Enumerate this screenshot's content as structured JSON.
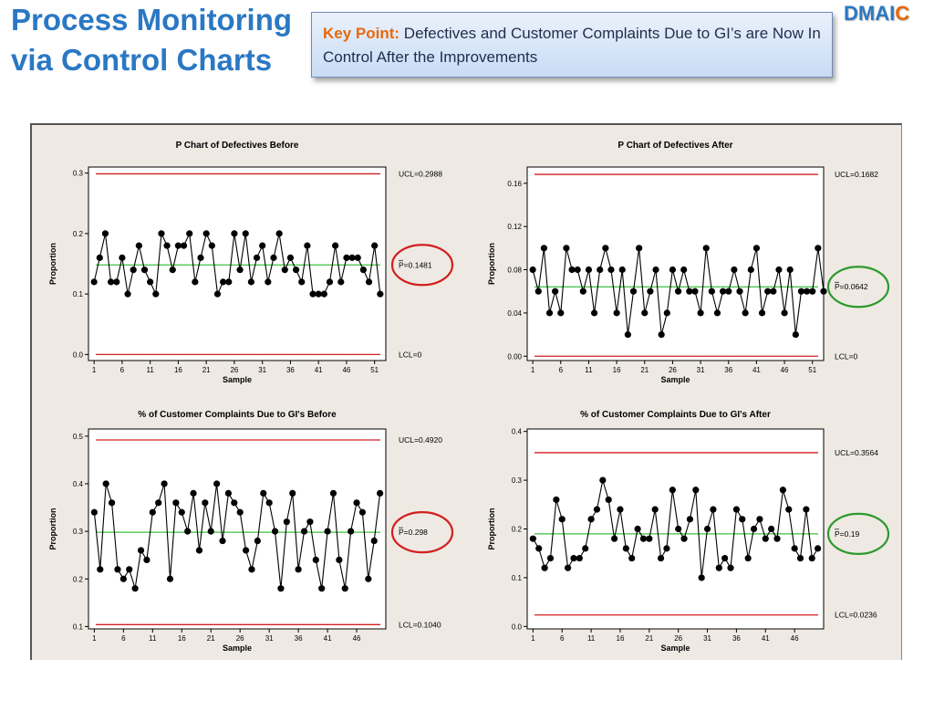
{
  "slide": {
    "title_line1": "Process Monitoring",
    "title_line2": "via Control Charts",
    "keypoint_label": "Key Point:",
    "keypoint_text": "Defectives and Customer Complaints Due to GI’s are Now In Control After the Improvements",
    "logo_prefix": "DMAI",
    "logo_highlight": "C"
  },
  "colors": {
    "title": "#2a78c4",
    "accent": "#e8680a",
    "limit_line": "#d21f1f",
    "center_line": "#3cc03c",
    "circle_before": "#d21f1f",
    "circle_after": "#2e9a2e",
    "panel_bg": "#eeeae3"
  },
  "chart_data": [
    {
      "type": "line",
      "title": "P Chart of Defectives Before",
      "xlabel": "Sample",
      "ylabel": "Proportion",
      "ylim": [
        -0.01,
        0.31
      ],
      "yticks": [
        0.0,
        0.1,
        0.2,
        0.3
      ],
      "ytick_labels": [
        "0.0",
        "0.1",
        "0.2",
        "0.3"
      ],
      "xticks": [
        1,
        6,
        11,
        16,
        21,
        26,
        31,
        36,
        41,
        46,
        51
      ],
      "xlim": [
        0,
        53
      ],
      "ucl": 0.2988,
      "center": 0.1481,
      "lcl": 0.0,
      "ucl_label": "UCL=0.2988",
      "center_label": "P=0.1481",
      "lcl_label": "LCL=0",
      "highlight": "red",
      "values": [
        0.12,
        0.16,
        0.2,
        0.12,
        0.12,
        0.16,
        0.1,
        0.14,
        0.18,
        0.14,
        0.12,
        0.1,
        0.2,
        0.18,
        0.14,
        0.18,
        0.18,
        0.2,
        0.12,
        0.16,
        0.2,
        0.18,
        0.1,
        0.12,
        0.12,
        0.2,
        0.14,
        0.2,
        0.12,
        0.16,
        0.18,
        0.12,
        0.16,
        0.2,
        0.14,
        0.16,
        0.14,
        0.12,
        0.18,
        0.1,
        0.1,
        0.1,
        0.12,
        0.18,
        0.12,
        0.16,
        0.16,
        0.16,
        0.14,
        0.12,
        0.18,
        0.1
      ]
    },
    {
      "type": "line",
      "title": "P Chart of Defectives After",
      "xlabel": "Sample",
      "ylabel": "Proportion",
      "ylim": [
        -0.004,
        0.175
      ],
      "yticks": [
        0.0,
        0.04,
        0.08,
        0.12,
        0.16
      ],
      "ytick_labels": [
        "0.00",
        "0.04",
        "0.08",
        "0.12",
        "0.16"
      ],
      "xticks": [
        1,
        6,
        11,
        16,
        21,
        26,
        31,
        36,
        41,
        46,
        51
      ],
      "xlim": [
        0,
        53
      ],
      "ucl": 0.1682,
      "center": 0.0642,
      "lcl": 0.0,
      "ucl_label": "UCL=0.1682",
      "center_label": "P=0.0642",
      "lcl_label": "LCL=0",
      "highlight": "green",
      "values": [
        0.08,
        0.06,
        0.1,
        0.04,
        0.06,
        0.04,
        0.1,
        0.08,
        0.08,
        0.06,
        0.08,
        0.04,
        0.08,
        0.1,
        0.08,
        0.04,
        0.08,
        0.02,
        0.06,
        0.1,
        0.04,
        0.06,
        0.08,
        0.02,
        0.04,
        0.08,
        0.06,
        0.08,
        0.06,
        0.06,
        0.04,
        0.1,
        0.06,
        0.04,
        0.06,
        0.06,
        0.08,
        0.06,
        0.04,
        0.08,
        0.1,
        0.04,
        0.06,
        0.06,
        0.08,
        0.04,
        0.08,
        0.02,
        0.06,
        0.06,
        0.06,
        0.1,
        0.06
      ]
    },
    {
      "type": "line",
      "title": "% of Customer Complaints Due to GI's Before",
      "xlabel": "Sample",
      "ylabel": "Proportion",
      "ylim": [
        0.095,
        0.515
      ],
      "yticks": [
        0.1,
        0.2,
        0.3,
        0.4,
        0.5
      ],
      "ytick_labels": [
        "0.1",
        "0.2",
        "0.3",
        "0.4",
        "0.5"
      ],
      "xticks": [
        1,
        6,
        11,
        16,
        21,
        26,
        31,
        36,
        41,
        46
      ],
      "xlim": [
        0,
        51
      ],
      "ucl": 0.492,
      "center": 0.298,
      "lcl": 0.104,
      "ucl_label": "UCL=0.4920",
      "center_label": "P=0.298",
      "lcl_label": "LCL=0.1040",
      "highlight": "red",
      "values": [
        0.34,
        0.22,
        0.4,
        0.36,
        0.22,
        0.2,
        0.22,
        0.18,
        0.26,
        0.24,
        0.34,
        0.36,
        0.4,
        0.2,
        0.36,
        0.34,
        0.3,
        0.38,
        0.26,
        0.36,
        0.3,
        0.4,
        0.28,
        0.38,
        0.36,
        0.34,
        0.26,
        0.22,
        0.28,
        0.38,
        0.36,
        0.3,
        0.18,
        0.32,
        0.38,
        0.22,
        0.3,
        0.32,
        0.24,
        0.18,
        0.3,
        0.38,
        0.24,
        0.18,
        0.3,
        0.36,
        0.34,
        0.2,
        0.28,
        0.38
      ]
    },
    {
      "type": "line",
      "title": "% of Customer Complaints Due to GI's After",
      "xlabel": "Sample",
      "ylabel": "Proportion",
      "ylim": [
        -0.005,
        0.405
      ],
      "yticks": [
        0.0,
        0.1,
        0.2,
        0.3,
        0.4
      ],
      "ytick_labels": [
        "0.0",
        "0.1",
        "0.2",
        "0.3",
        "0.4"
      ],
      "xticks": [
        1,
        6,
        11,
        16,
        21,
        26,
        31,
        36,
        41,
        46
      ],
      "xlim": [
        0,
        51
      ],
      "ucl": 0.3564,
      "center": 0.19,
      "lcl": 0.0236,
      "ucl_label": "UCL=0.3564",
      "center_label": "P=0.19",
      "lcl_label": "LCL=0.0236",
      "highlight": "green",
      "values": [
        0.18,
        0.16,
        0.12,
        0.14,
        0.26,
        0.22,
        0.12,
        0.14,
        0.14,
        0.16,
        0.22,
        0.24,
        0.3,
        0.26,
        0.18,
        0.24,
        0.16,
        0.14,
        0.2,
        0.18,
        0.18,
        0.24,
        0.14,
        0.16,
        0.28,
        0.2,
        0.18,
        0.22,
        0.28,
        0.1,
        0.2,
        0.24,
        0.12,
        0.14,
        0.12,
        0.24,
        0.22,
        0.14,
        0.2,
        0.22,
        0.18,
        0.2,
        0.18,
        0.28,
        0.24,
        0.16,
        0.14,
        0.24,
        0.14,
        0.16
      ]
    }
  ]
}
